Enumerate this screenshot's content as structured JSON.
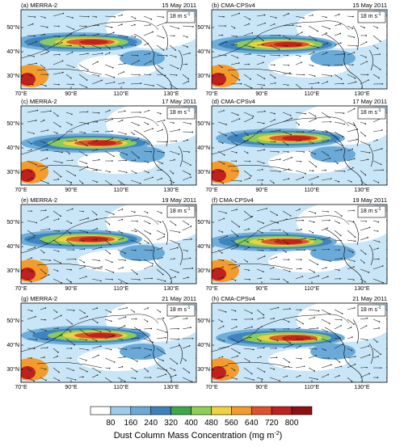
{
  "panels": [
    {
      "label": "(a) MERRA-2",
      "date": "15  May 2011"
    },
    {
      "label": "(b) CMA-CPSv4",
      "date": "15  May 2011"
    },
    {
      "label": "(c) MERRA-2",
      "date": "17  May 2011"
    },
    {
      "label": "(d) CMA-CPSv4",
      "date": "17  May 2011"
    },
    {
      "label": "(e) MERRA-2",
      "date": "19  May 2011"
    },
    {
      "label": "(f) CMA-CPSv4",
      "date": "19  May 2011"
    },
    {
      "label": "(g) MERRA-2",
      "date": "21  May 2011"
    },
    {
      "label": "(h) CMA-CPSv4",
      "date": "21  May 2011"
    }
  ],
  "wind_ref": {
    "text": "18 m s",
    "exponent": "-1"
  },
  "lat_labels": [
    "50°N",
    "40°N",
    "30°N"
  ],
  "lon_labels": [
    "70°E",
    "90°E",
    "110°E",
    "130°E"
  ],
  "colorbar": {
    "ticks": [
      80,
      160,
      240,
      320,
      400,
      480,
      560,
      640,
      720,
      800
    ],
    "title": "Dust Column Mass Concentration (mg m",
    "title_exponent": "-2",
    "title_end": ")"
  }
}
